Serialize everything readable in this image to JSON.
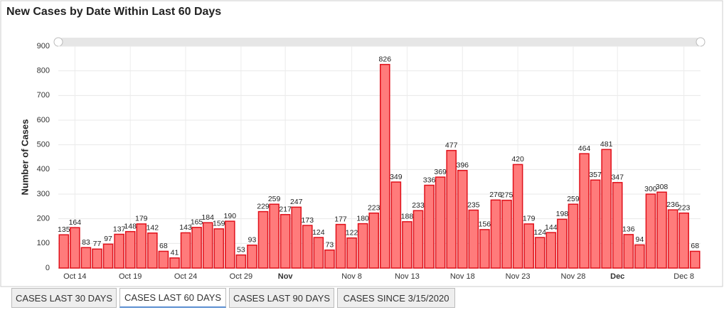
{
  "chart_data": {
    "type": "bar",
    "title": "New Cases by Date Within Last 60 Days",
    "y_label": "Number of Cases",
    "categories": [
      null,
      "Oct 14",
      null,
      null,
      null,
      null,
      "Oct 19",
      null,
      null,
      null,
      null,
      "Oct 24",
      null,
      null,
      null,
      null,
      "Oct 29",
      null,
      null,
      null,
      "Nov",
      null,
      null,
      null,
      null,
      null,
      "Nov 8",
      null,
      null,
      null,
      null,
      "Nov 13",
      null,
      null,
      null,
      null,
      "Nov 18",
      null,
      null,
      null,
      null,
      "Nov 23",
      null,
      null,
      null,
      null,
      "Nov 28",
      null,
      null,
      null,
      "Dec",
      null,
      null,
      null,
      null,
      null,
      "Dec 8",
      null
    ],
    "values": [
      135,
      164,
      83,
      77,
      97,
      137,
      148,
      179,
      142,
      68,
      41,
      143,
      165,
      184,
      159,
      190,
      53,
      93,
      229,
      259,
      217,
      247,
      173,
      124,
      73,
      177,
      122,
      180,
      223,
      826,
      349,
      188,
      233,
      336,
      369,
      477,
      396,
      235,
      156,
      276,
      275,
      420,
      179,
      124,
      144,
      198,
      259,
      464,
      357,
      481,
      347,
      136,
      94,
      300,
      308,
      236,
      223,
      68
    ],
    "color": "#ff7b7b",
    "edge_color": "#e0101a",
    "ylim": [
      0,
      900
    ],
    "yticks": [
      0,
      100,
      200,
      300,
      400,
      500,
      600,
      700,
      800,
      900
    ],
    "grid": true
  },
  "tabs": [
    "CASES LAST 30 DAYS",
    "CASES LAST 60 DAYS",
    "CASES LAST 90 DAYS",
    "CASES SINCE 3/15/2020"
  ],
  "selected_tab": 1
}
